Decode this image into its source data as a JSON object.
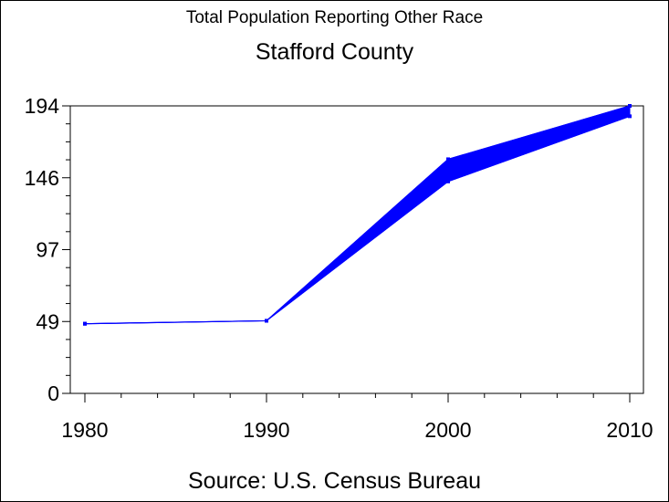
{
  "chart_data": {
    "type": "line",
    "title": "Total Population Reporting Other Race",
    "subtitle": "Stafford County",
    "footnote": "Source: U.S. Census Bureau",
    "x": [
      1980,
      1990,
      2000,
      2010
    ],
    "x_tick_labels": [
      "1980",
      "1990",
      "2000",
      "2010"
    ],
    "y_tick_labels": [
      "0",
      "49",
      "97",
      "146",
      "194"
    ],
    "ylim": [
      0,
      194
    ],
    "xlim": [
      1980,
      2010
    ],
    "series": [
      {
        "values": [
          47,
          49,
          158,
          194
        ],
        "style": "upper bound"
      },
      {
        "values": [
          47,
          49,
          143,
          187
        ],
        "style": "lower bound"
      }
    ],
    "fill_between_series": true,
    "color": "#0000ff",
    "grid": false
  }
}
